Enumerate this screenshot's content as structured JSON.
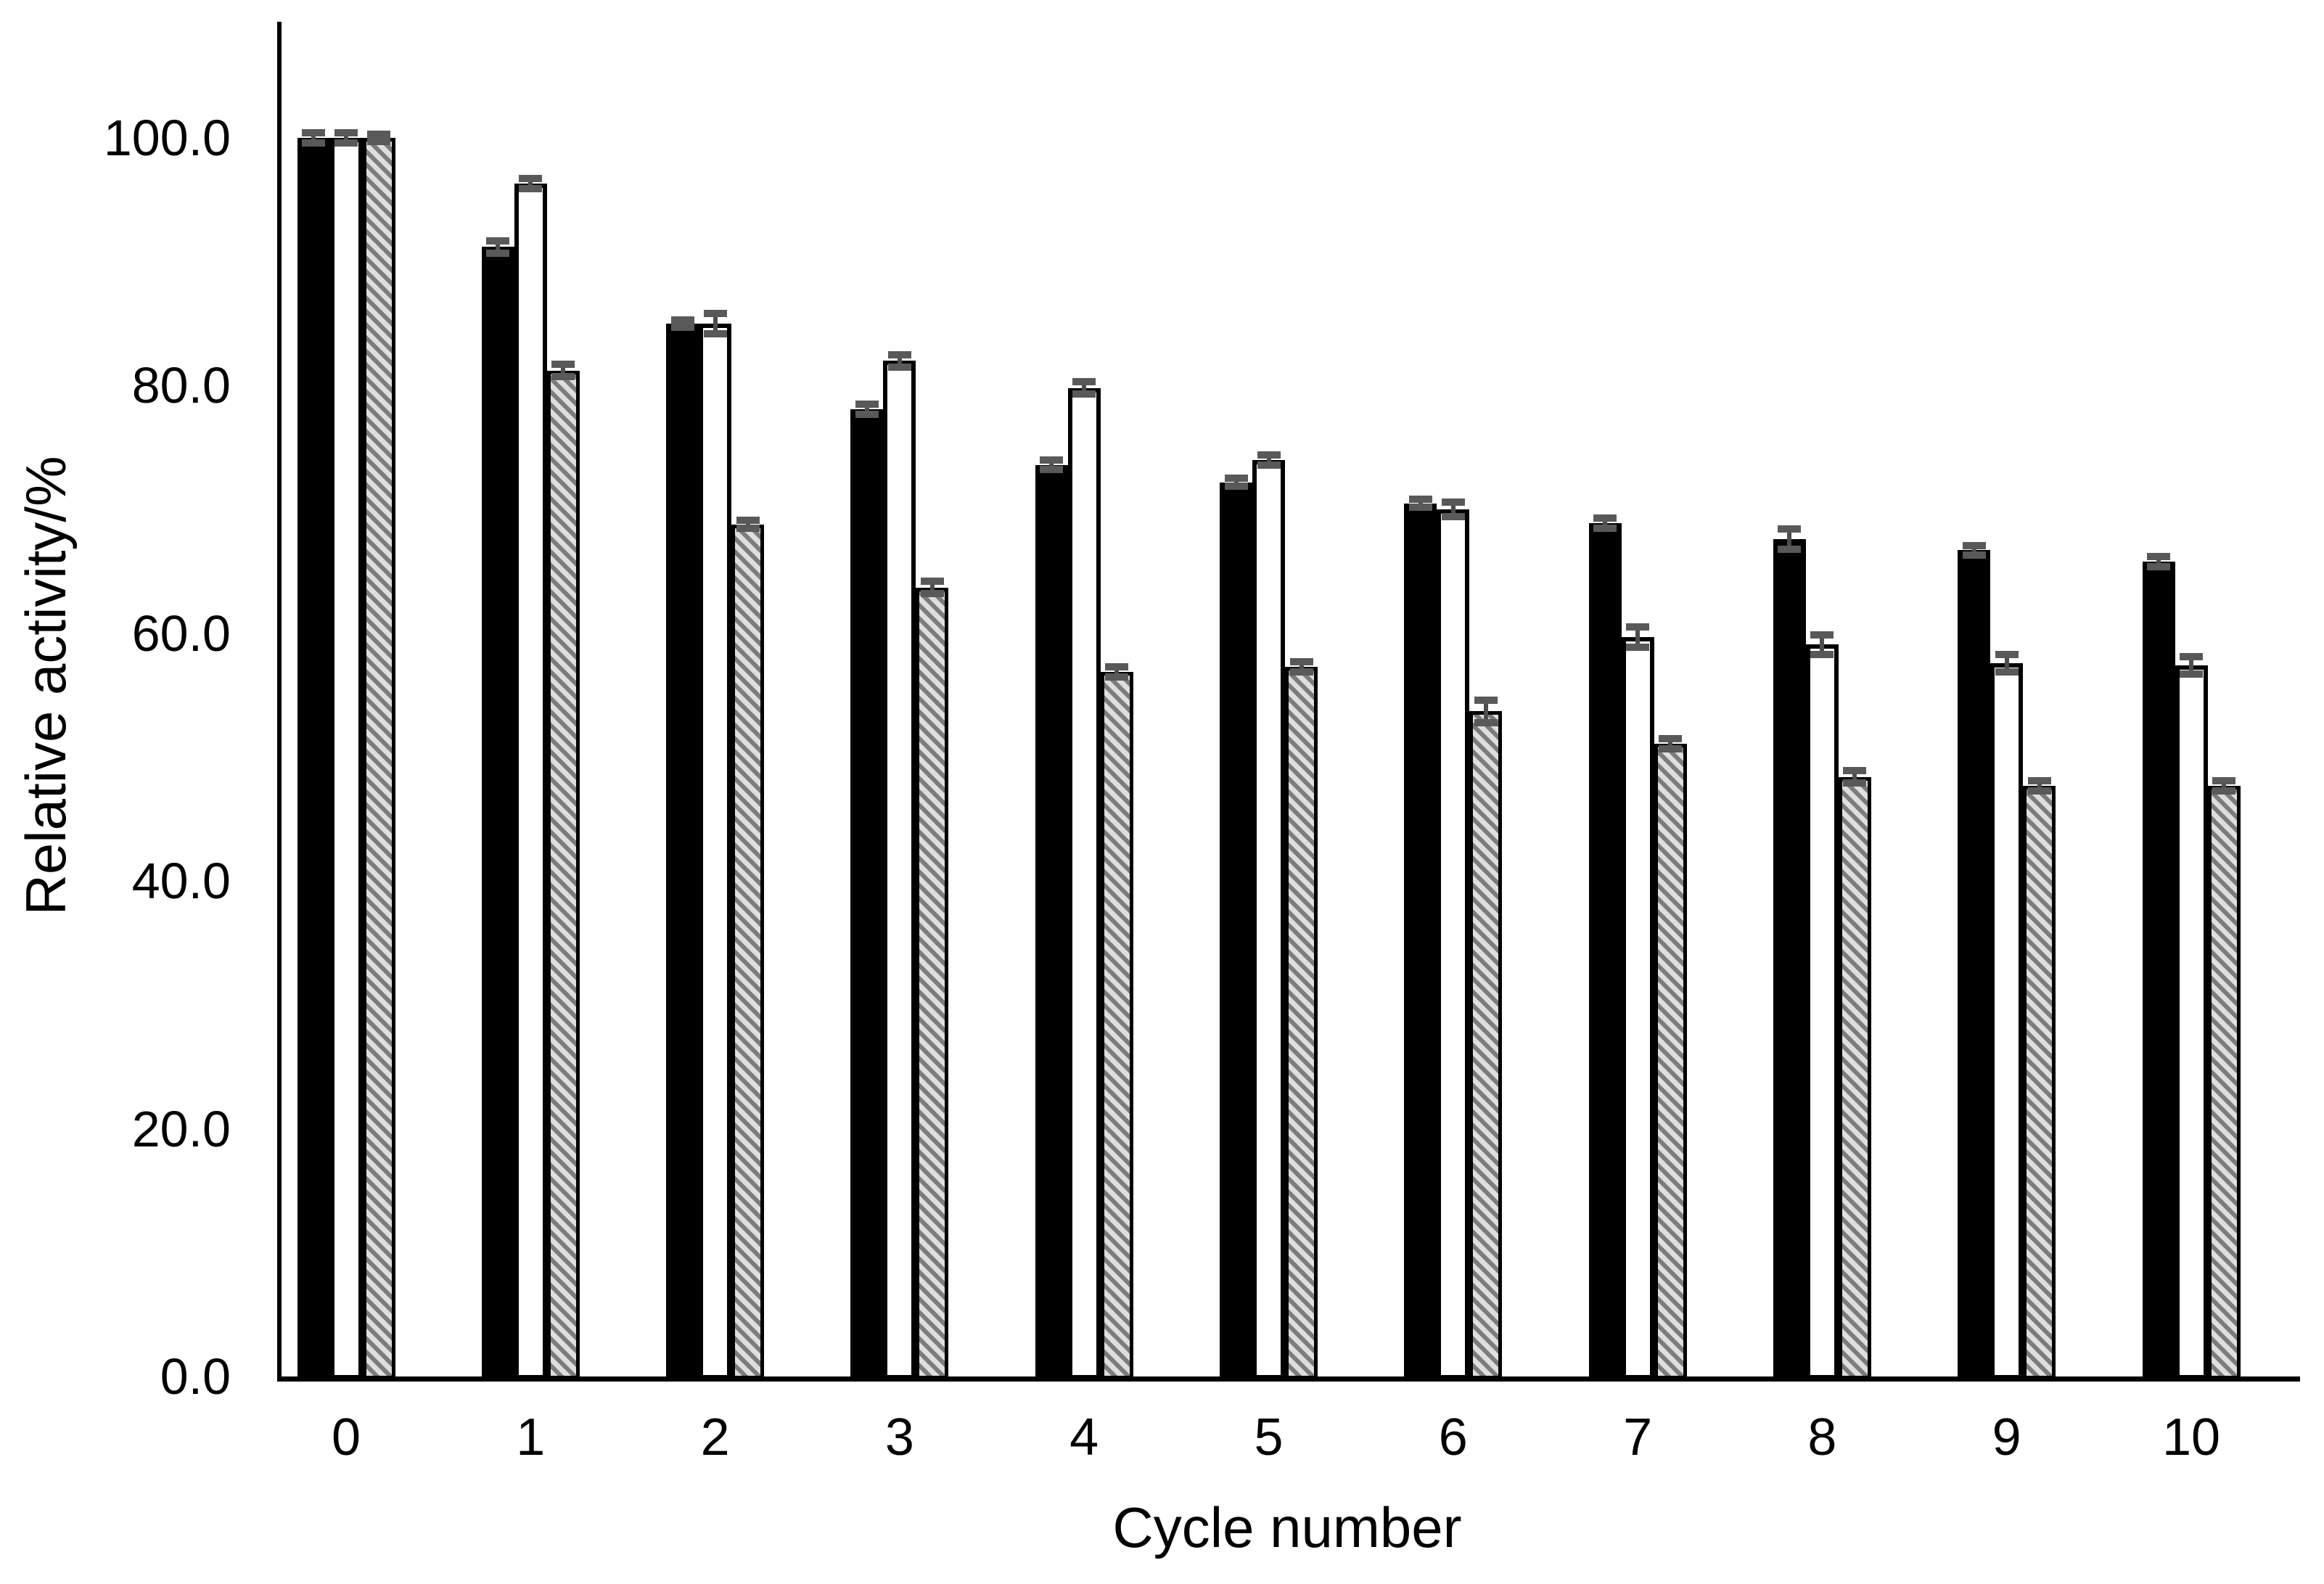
{
  "chart_data": {
    "type": "bar",
    "title": "",
    "xlabel": "Cycle number",
    "ylabel": "Relative activity/%",
    "categories": [
      "0",
      "1",
      "2",
      "3",
      "4",
      "5",
      "6",
      "7",
      "8",
      "9",
      "10"
    ],
    "y_tick_labels": [
      "0.0",
      "20.0",
      "40.0",
      "60.0",
      "80.0",
      "100.0"
    ],
    "y_tick_values": [
      0,
      20,
      40,
      60,
      80,
      100
    ],
    "ylim": [
      0,
      109
    ],
    "grid": false,
    "legend_position": "none",
    "error_bars": true,
    "series": [
      {
        "name": "black-solid-bars",
        "fill": "solid-black",
        "values": [
          100.0,
          91.2,
          85.0,
          78.1,
          73.6,
          72.2,
          70.5,
          68.9,
          67.6,
          66.7,
          65.8
        ],
        "errors": [
          0.4,
          0.5,
          0.3,
          0.4,
          0.4,
          0.3,
          0.3,
          0.4,
          0.8,
          0.4,
          0.4
        ]
      },
      {
        "name": "white-open-bars",
        "fill": "white-black-outline",
        "values": [
          100.0,
          96.3,
          85.0,
          82.0,
          79.8,
          74.0,
          70.0,
          59.7,
          59.1,
          57.6,
          57.4
        ],
        "errors": [
          0.4,
          0.4,
          0.8,
          0.5,
          0.5,
          0.4,
          0.6,
          0.8,
          0.8,
          0.7,
          0.7
        ]
      },
      {
        "name": "gray-hatched-bars",
        "fill": "diagonal-hatch",
        "values": [
          100.0,
          81.2,
          68.8,
          63.7,
          56.9,
          57.3,
          53.7,
          51.1,
          48.4,
          47.7,
          47.7
        ],
        "errors": [
          0.3,
          0.5,
          0.3,
          0.5,
          0.4,
          0.4,
          0.9,
          0.4,
          0.5,
          0.4,
          0.4
        ]
      }
    ],
    "colors": {
      "bar_outline": "#000000",
      "black_fill": "#000000",
      "white_fill": "#ffffff",
      "hatch_light": "#dedede",
      "hatch_dark": "#7c7c7c",
      "error_cap": "#595959"
    }
  }
}
